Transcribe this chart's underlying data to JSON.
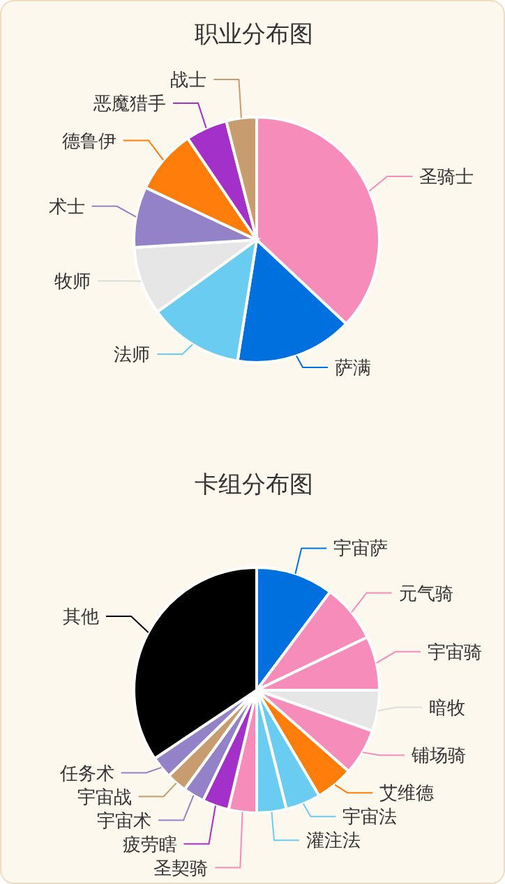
{
  "chart_data": [
    {
      "type": "pie",
      "title": "职业分布图",
      "categories": [
        "圣骑士",
        "萨满",
        "法师",
        "牧师",
        "术士",
        "德鲁伊",
        "恶魔猎手",
        "战士"
      ],
      "values": [
        37,
        15.5,
        12.5,
        9,
        8,
        8.5,
        5.5,
        4
      ],
      "colors": [
        "#f58cba",
        "#0070de",
        "#69ccf0",
        "#e6e6e6",
        "#9482c9",
        "#ff7d0a",
        "#a330c9",
        "#c79c6e"
      ]
    },
    {
      "type": "pie",
      "title": "卡组分布图",
      "categories": [
        "宇宙萨",
        "元气骑",
        "宇宙骑",
        "暗牧",
        "铺场骑",
        "艾维德",
        "宇宙法",
        "灌注法",
        "圣契骑",
        "疲劳瞎",
        "宇宙术",
        "宇宙战",
        "任务术",
        "其他"
      ],
      "values": [
        10.2,
        7.7,
        7.1,
        5.4,
        6.1,
        5.0,
        4.6,
        3.9,
        3.7,
        3.5,
        2.8,
        2.7,
        2.9,
        34.4
      ],
      "colors": [
        "#0070de",
        "#f58cba",
        "#f58cba",
        "#e6e6e6",
        "#f58cba",
        "#ff7d0a",
        "#69ccf0",
        "#69ccf0",
        "#f58cba",
        "#a330c9",
        "#9482c9",
        "#c79c6e",
        "#9482c9",
        "#000000"
      ]
    }
  ]
}
